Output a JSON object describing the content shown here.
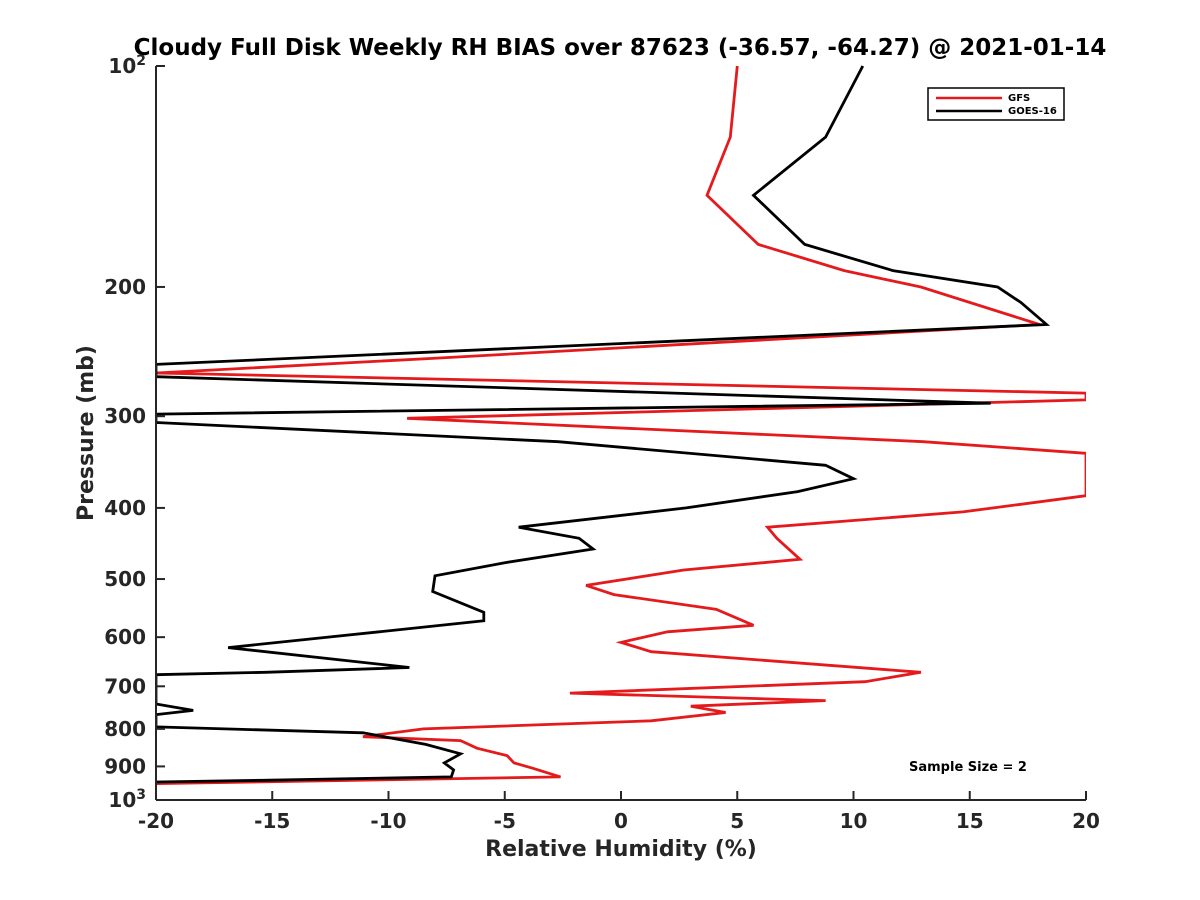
{
  "chart_data": {
    "type": "line",
    "title": "Cloudy Full Disk Weekly RH BIAS over 87623 (-36.57, -64.27) @ 2021-01-14",
    "xlabel": "Relative Humidity (%)",
    "ylabel": "Pressure (mb)",
    "xlim": [
      -20,
      20
    ],
    "ylim": [
      100,
      1000
    ],
    "y_scale": "log",
    "y_reversed": true,
    "x_ticks": [
      "-20",
      "-15",
      "-10",
      "-5",
      "0",
      "5",
      "10",
      "15",
      "20"
    ],
    "y_ticks": [
      {
        "value": 100,
        "label": "10",
        "sup": "2"
      },
      {
        "value": 200,
        "label": "200"
      },
      {
        "value": 300,
        "label": "300"
      },
      {
        "value": 400,
        "label": "400"
      },
      {
        "value": 500,
        "label": "500"
      },
      {
        "value": 600,
        "label": "600"
      },
      {
        "value": 700,
        "label": "700"
      },
      {
        "value": 800,
        "label": "800"
      },
      {
        "value": 900,
        "label": "900"
      },
      {
        "value": 1000,
        "label": "10",
        "sup": "3"
      }
    ],
    "legend": {
      "position": "top-right",
      "entries": [
        "GFS",
        "GOES-16"
      ]
    },
    "annotation": "Sample Size = 2",
    "grid": false,
    "series": [
      {
        "name": "GFS",
        "color": "#e41a1c",
        "points": [
          [
            5.0,
            100
          ],
          [
            4.7,
            125
          ],
          [
            3.7,
            150
          ],
          [
            5.9,
            175
          ],
          [
            9.6,
            190
          ],
          [
            12.9,
            200
          ],
          [
            18.0,
            225
          ],
          [
            -7.9,
            250
          ],
          [
            -20.0,
            262
          ],
          [
            20.0,
            279
          ],
          [
            20.0,
            285
          ],
          [
            -9.2,
            302
          ],
          [
            13.0,
            325
          ],
          [
            20.0,
            337
          ],
          [
            20.0,
            385
          ],
          [
            14.7,
            405
          ],
          [
            6.3,
            425
          ],
          [
            6.7,
            440
          ],
          [
            7.7,
            470
          ],
          [
            2.7,
            486
          ],
          [
            -1.5,
            510
          ],
          [
            -0.3,
            525
          ],
          [
            4.1,
            550
          ],
          [
            5.7,
            578
          ],
          [
            2.0,
            590
          ],
          [
            0.0,
            610
          ],
          [
            1.3,
            628
          ],
          [
            12.9,
            670
          ],
          [
            10.5,
            690
          ],
          [
            -2.2,
            715
          ],
          [
            8.8,
            732
          ],
          [
            3.0,
            745
          ],
          [
            4.5,
            760
          ],
          [
            1.3,
            780
          ],
          [
            -8.5,
            800
          ],
          [
            -11.1,
            820
          ],
          [
            -6.9,
            830
          ],
          [
            -6.2,
            850
          ],
          [
            -4.9,
            870
          ],
          [
            -4.6,
            890
          ],
          [
            -3.8,
            905
          ],
          [
            -2.6,
            930
          ],
          [
            -20.0,
            950
          ]
        ]
      },
      {
        "name": "GOES-16",
        "color": "#000000",
        "points": [
          [
            10.4,
            100
          ],
          [
            8.8,
            125
          ],
          [
            5.7,
            150
          ],
          [
            7.9,
            175
          ],
          [
            11.7,
            190
          ],
          [
            16.2,
            200
          ],
          [
            17.2,
            210
          ],
          [
            18.3,
            225
          ],
          [
            -20.0,
            255
          ],
          [
            -20.0,
            265
          ],
          [
            15.9,
            288
          ],
          [
            -20.0,
            298
          ],
          [
            -20.0,
            306
          ],
          [
            -2.7,
            325
          ],
          [
            8.8,
            350
          ],
          [
            10.0,
            365
          ],
          [
            7.6,
            380
          ],
          [
            2.8,
            400
          ],
          [
            -4.4,
            425
          ],
          [
            -1.8,
            440
          ],
          [
            -1.2,
            455
          ],
          [
            -5.0,
            475
          ],
          [
            -8.0,
            495
          ],
          [
            -8.1,
            520
          ],
          [
            -5.9,
            555
          ],
          [
            -5.9,
            570
          ],
          [
            -10.4,
            590
          ],
          [
            -16.9,
            620
          ],
          [
            -9.1,
            660
          ],
          [
            -15.3,
            670
          ],
          [
            -20.0,
            675
          ],
          [
            -20.0,
            740
          ],
          [
            -18.4,
            755
          ],
          [
            -20.0,
            765
          ],
          [
            -20.0,
            795
          ],
          [
            -11.1,
            810
          ],
          [
            -8.4,
            840
          ],
          [
            -6.9,
            865
          ],
          [
            -7.6,
            890
          ],
          [
            -7.2,
            910
          ],
          [
            -7.3,
            930
          ],
          [
            -15.4,
            940
          ],
          [
            -20.0,
            945
          ]
        ]
      }
    ]
  }
}
